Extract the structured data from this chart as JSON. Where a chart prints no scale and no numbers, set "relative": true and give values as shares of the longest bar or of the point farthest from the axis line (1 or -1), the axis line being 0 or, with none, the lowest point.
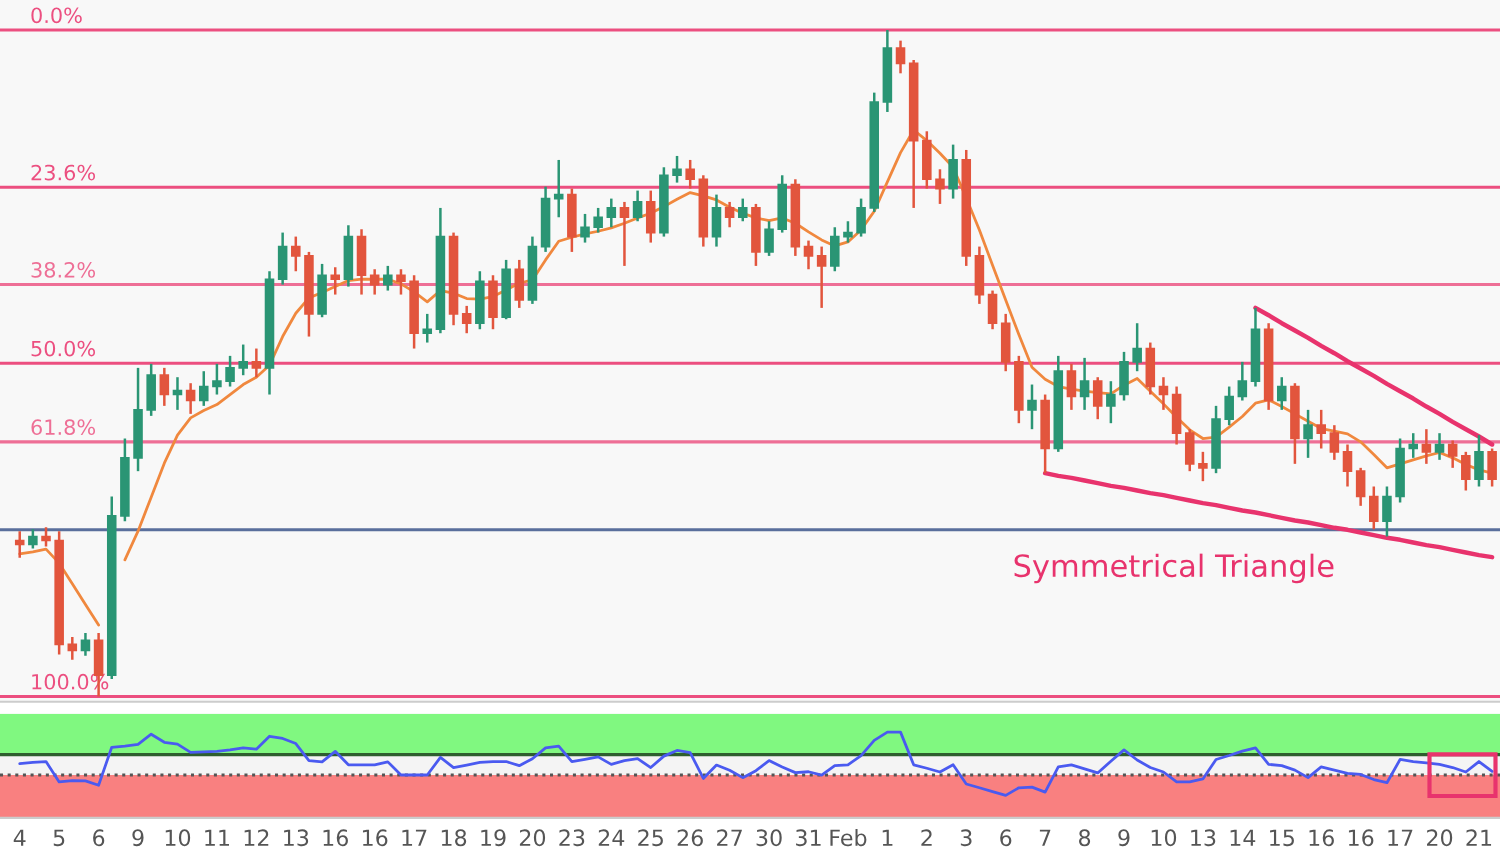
{
  "chart_data": [
    {
      "type": "candlestick",
      "ylim": [
        100.8,
        -4.5
      ],
      "categories": [
        null,
        null,
        null,
        null,
        null,
        null,
        null,
        null,
        null,
        null,
        null,
        null,
        null,
        null,
        null,
        null,
        null,
        null,
        null,
        null,
        null,
        null,
        null,
        null,
        null,
        null,
        null,
        null,
        null,
        null,
        null,
        null,
        null,
        null,
        null,
        null,
        null,
        null,
        null,
        null,
        null,
        null,
        null,
        null,
        null,
        null,
        null,
        null,
        null,
        null,
        null,
        null,
        null,
        null,
        null,
        null,
        null,
        null,
        null,
        null,
        null,
        null,
        null,
        null,
        null,
        null,
        null,
        null,
        null,
        null,
        null,
        null,
        null,
        null,
        null,
        null,
        null,
        null,
        null,
        null,
        null,
        null,
        null,
        null,
        null,
        null,
        null,
        null,
        null,
        null,
        null,
        null,
        null,
        null,
        null,
        null,
        null,
        null,
        null,
        null,
        null,
        null,
        null,
        null,
        null,
        null,
        null,
        null,
        null,
        null,
        null,
        null,
        null
      ],
      "ohlc": [
        [
          76.6,
          79.2,
          75.2,
          77.2
        ],
        [
          77.2,
          77.8,
          74.9,
          76.0
        ],
        [
          76.0,
          77.5,
          74.6,
          76.6
        ],
        [
          76.6,
          93.7,
          75.2,
          92.2
        ],
        [
          92.2,
          94.5,
          91.1,
          93.1
        ],
        [
          93.1,
          93.9,
          90.5,
          91.6
        ],
        [
          91.6,
          100,
          90.5,
          96.8
        ],
        [
          96.8,
          97.4,
          70.0,
          72.9
        ],
        [
          72.9,
          73.7,
          61.3,
          64.2
        ],
        [
          64.2,
          66.2,
          50.7,
          57.0
        ],
        [
          57.0,
          57.9,
          50.1,
          51.8
        ],
        [
          51.8,
          56.4,
          50.7,
          54.7
        ],
        [
          54.7,
          57.0,
          52.1,
          54.1
        ],
        [
          54.1,
          57.6,
          53.0,
          55.6
        ],
        [
          55.6,
          56.4,
          51.2,
          53.5
        ],
        [
          53.5,
          54.7,
          50.1,
          52.7
        ],
        [
          52.7,
          53.5,
          48.9,
          50.7
        ],
        [
          50.7,
          51.8,
          47.2,
          49.8
        ],
        [
          49.8,
          52.1,
          47.8,
          50.7
        ],
        [
          50.7,
          54.7,
          36.2,
          37.4
        ],
        [
          37.4,
          38.2,
          30.4,
          32.5
        ],
        [
          32.5,
          36.2,
          31.0,
          33.9
        ],
        [
          33.9,
          46.0,
          33.3,
          42.6
        ],
        [
          42.6,
          43.1,
          35.1,
          36.8
        ],
        [
          36.8,
          39.7,
          35.6,
          37.4
        ],
        [
          37.4,
          38.5,
          29.3,
          31.0
        ],
        [
          31.0,
          39.7,
          29.9,
          36.8
        ],
        [
          36.8,
          39.7,
          35.9,
          38.2
        ],
        [
          38.2,
          39.1,
          35.4,
          36.8
        ],
        [
          36.8,
          39.7,
          35.9,
          37.7
        ],
        [
          37.7,
          47.8,
          36.8,
          45.5
        ],
        [
          45.5,
          46.9,
          42.6,
          44.9
        ],
        [
          44.9,
          45.5,
          26.7,
          31.0
        ],
        [
          31.0,
          44.3,
          30.4,
          42.6
        ],
        [
          42.6,
          45.5,
          41.4,
          44.0
        ],
        [
          44.0,
          44.9,
          36.2,
          37.7
        ],
        [
          37.7,
          44.9,
          36.8,
          43.1
        ],
        [
          43.1,
          43.4,
          34.5,
          35.9
        ],
        [
          35.9,
          41.7,
          34.5,
          40.5
        ],
        [
          40.5,
          41.1,
          31.0,
          32.5
        ],
        [
          32.5,
          33.3,
          23.5,
          25.3
        ],
        [
          25.3,
          28.1,
          19.5,
          24.7
        ],
        [
          24.7,
          33.3,
          23.8,
          31.0
        ],
        [
          31.0,
          31.9,
          27.6,
          29.6
        ],
        [
          29.6,
          30.4,
          26.7,
          28.1
        ],
        [
          28.1,
          29.6,
          25.3,
          26.7
        ],
        [
          26.7,
          35.4,
          25.8,
          28.1
        ],
        [
          28.1,
          28.7,
          24.1,
          25.8
        ],
        [
          25.8,
          31.9,
          24.1,
          30.4
        ],
        [
          30.4,
          31.0,
          20.6,
          21.8
        ],
        [
          21.8,
          22.9,
          18.9,
          20.9
        ],
        [
          20.9,
          23.8,
          19.5,
          22.4
        ],
        [
          22.4,
          32.5,
          21.8,
          31.0
        ],
        [
          31.0,
          32.5,
          24.7,
          26.7
        ],
        [
          26.7,
          29.6,
          25.8,
          28.1
        ],
        [
          28.1,
          28.7,
          25.3,
          26.7
        ],
        [
          26.7,
          35.4,
          26.1,
          33.3
        ],
        [
          33.3,
          33.9,
          28.7,
          29.9
        ],
        [
          29.9,
          30.4,
          21.8,
          23.2
        ],
        [
          23.2,
          33.9,
          22.4,
          32.5
        ],
        [
          32.5,
          35.9,
          31.6,
          33.9
        ],
        [
          33.9,
          41.7,
          32.5,
          35.4
        ],
        [
          35.4,
          36.2,
          29.6,
          31.0
        ],
        [
          31.0,
          31.9,
          28.7,
          30.4
        ],
        [
          30.4,
          31.0,
          25.3,
          26.7
        ],
        [
          26.7,
          27.3,
          9.4,
          10.8
        ],
        [
          10.8,
          12.3,
          0,
          2.7
        ],
        [
          2.7,
          6.5,
          1.6,
          5.0
        ],
        [
          5.0,
          26.7,
          4.5,
          16.6
        ],
        [
          16.6,
          23.8,
          15.2,
          22.4
        ],
        [
          22.4,
          26.1,
          20.9,
          23.8
        ],
        [
          23.8,
          25.3,
          17.2,
          19.5
        ],
        [
          19.5,
          35.4,
          18.0,
          33.9
        ],
        [
          33.9,
          41.1,
          32.5,
          39.7
        ],
        [
          39.7,
          44.9,
          39.1,
          44.0
        ],
        [
          44.0,
          51.2,
          42.6,
          49.8
        ],
        [
          49.8,
          59.0,
          48.9,
          57.0
        ],
        [
          57.0,
          59.9,
          53.2,
          55.6
        ],
        [
          55.6,
          66.5,
          54.7,
          62.8
        ],
        [
          62.8,
          63.3,
          48.9,
          51.2
        ],
        [
          51.2,
          57.0,
          50.1,
          55.0
        ],
        [
          55.0,
          57.0,
          49.2,
          52.7
        ],
        [
          52.7,
          58.4,
          52.1,
          56.4
        ],
        [
          56.4,
          59.0,
          52.7,
          54.7
        ],
        [
          54.7,
          55.6,
          48.3,
          49.8
        ],
        [
          49.8,
          51.2,
          44.0,
          47.8
        ],
        [
          47.8,
          54.7,
          46.9,
          53.5
        ],
        [
          53.5,
          57.0,
          52.1,
          54.7
        ],
        [
          54.7,
          62.2,
          53.5,
          60.5
        ],
        [
          60.5,
          66.2,
          59.9,
          65.1
        ],
        [
          65.1,
          67.7,
          63.3,
          65.7
        ],
        [
          65.7,
          66.5,
          56.4,
          58.4
        ],
        [
          58.4,
          59.3,
          53.5,
          55.0
        ],
        [
          55.0,
          55.6,
          49.8,
          52.7
        ],
        [
          52.7,
          53.5,
          41.7,
          44.9
        ],
        [
          44.9,
          57.0,
          44.0,
          55.6
        ],
        [
          55.6,
          57.0,
          52.1,
          53.5
        ],
        [
          53.5,
          65.1,
          53.0,
          61.3
        ],
        [
          61.3,
          64.2,
          57.0,
          59.3
        ],
        [
          59.3,
          62.8,
          57.0,
          60.5
        ],
        [
          60.5,
          64.5,
          59.3,
          63.3
        ],
        [
          63.3,
          68.5,
          62.2,
          66.2
        ],
        [
          66.2,
          71.4,
          65.7,
          70.0
        ],
        [
          70.0,
          74.9,
          68.5,
          73.7
        ],
        [
          73.7,
          76.0,
          68.5,
          70.0
        ],
        [
          70.0,
          70.9,
          61.3,
          62.8
        ],
        [
          62.8,
          64.2,
          60.5,
          62.2
        ],
        [
          62.2,
          65.1,
          59.9,
          63.3
        ],
        [
          63.3,
          64.5,
          60.5,
          62.2
        ],
        [
          62.2,
          65.7,
          61.6,
          63.9
        ],
        [
          63.9,
          69.1,
          63.3,
          67.4
        ],
        [
          67.4,
          68.5,
          60.8,
          63.3
        ],
        [
          63.3,
          68.5,
          62.8,
          67.4
        ]
      ],
      "colors": [
        "#e2553d",
        "#2a9574",
        "#e2553d",
        "#e2553d",
        "#e2553d",
        "#2a9574",
        "#e2553d",
        "#2a9574",
        "#2a9574",
        "#2a9574",
        "#2a9574",
        "#e2553d",
        "#2a9574",
        "#e2553d",
        "#2a9574",
        "#2a9574",
        "#2a9574",
        "#2a9574",
        "#e2553d",
        "#2a9574",
        "#2a9574",
        "#e2553d",
        "#e2553d",
        "#2a9574",
        "#e2553d",
        "#2a9574",
        "#e2553d",
        "#e2553d",
        "#2a9574",
        "#e2553d",
        "#e2553d",
        "#2a9574",
        "#2a9574",
        "#e2553d",
        "#e2553d",
        "#2a9574",
        "#e2553d",
        "#2a9574",
        "#e2553d",
        "#2a9574",
        "#2a9574",
        "#2a9574",
        "#e2553d",
        "#2a9574",
        "#2a9574",
        "#2a9574",
        "#e2553d",
        "#2a9574",
        "#e2553d",
        "#2a9574",
        "#2a9574",
        "#e2553d",
        "#e2553d",
        "#2a9574",
        "#e2553d",
        "#2a9574",
        "#e2553d",
        "#2a9574",
        "#2a9574",
        "#e2553d",
        "#e2553d",
        "#e2553d",
        "#2a9574",
        "#2a9574",
        "#2a9574",
        "#2a9574",
        "#2a9574",
        "#e2553d",
        "#e2553d",
        "#e2553d",
        "#e2553d",
        "#2a9574",
        "#e2553d",
        "#e2553d",
        "#e2553d",
        "#e2553d",
        "#e2553d",
        "#2a9574",
        "#e2553d",
        "#2a9574",
        "#e2553d",
        "#2a9574",
        "#e2553d",
        "#2a9574",
        "#2a9574",
        "#2a9574",
        "#e2553d",
        "#e2553d",
        "#e2553d",
        "#e2553d",
        "#e2553d",
        "#2a9574",
        "#2a9574",
        "#2a9574",
        "#2a9574",
        "#e2553d",
        "#2a9574",
        "#e2553d",
        "#2a9574",
        "#e2553d",
        "#e2553d",
        "#e2553d",
        "#e2553d",
        "#e2553d",
        "#2a9574",
        "#2a9574",
        "#2a9574",
        "#e2553d",
        "#2a9574",
        "#e2553d",
        "#e2553d",
        "#2a9574",
        "#e2553d"
      ],
      "series": [
        {
          "type": "line",
          "color": "#f0883e",
          "values": [
            78.6,
            78.3,
            77.9,
            80.0,
            83.1,
            86.2,
            89.3,
            null,
            79.5,
            75.2,
            70.1,
            65.0,
            60.8,
            58.2,
            57.1,
            56.2,
            54.7,
            53.2,
            52.1,
            50.3,
            46.0,
            42.5,
            40.2,
            39.4,
            38.5,
            37.6,
            37.4,
            37.4,
            37.4,
            38.1,
            39.3,
            40.8,
            39.1,
            39.5,
            40.3,
            40.4,
            40.0,
            39.0,
            38.0,
            37.5,
            34.5,
            31.7,
            31.1,
            30.6,
            30.2,
            29.7,
            29.0,
            28.2,
            27.5,
            26.5,
            25.4,
            24.4,
            24.9,
            25.5,
            26.6,
            27.5,
            28.2,
            28.6,
            28.2,
            29.0,
            30.3,
            31.5,
            32.4,
            31.8,
            30.0,
            27.2,
            22.8,
            18.4,
            15.0,
            16.6,
            18.5,
            20.6,
            25.2,
            30.0,
            35.3,
            40.5,
            45.7,
            50.6,
            52.4,
            53.5,
            53.9,
            54.2,
            54.4,
            54.6,
            53.3,
            52.3,
            54.2,
            56.1,
            58.1,
            60.0,
            61.3,
            61.1,
            59.6,
            58.0,
            56.0,
            55.5,
            56.5,
            57.6,
            58.7,
            59.8,
            60.2,
            60.6,
            61.8,
            63.7,
            65.7,
            65.1,
            64.5,
            63.9,
            63.4,
            64.2,
            65.2,
            66.0,
            66.5
          ]
        },
        {
          "type": "line",
          "color": "#e8336d",
          "values": [
            null,
            null,
            null,
            null,
            null,
            null,
            null,
            null,
            null,
            null,
            null,
            null,
            null,
            null,
            null,
            null,
            null,
            null,
            null,
            null,
            null,
            null,
            null,
            null,
            null,
            null,
            null,
            null,
            null,
            null,
            null,
            null,
            null,
            null,
            null,
            null,
            null,
            null,
            null,
            null,
            null,
            null,
            null,
            null,
            null,
            null,
            null,
            null,
            null,
            null,
            null,
            null,
            null,
            null,
            null,
            null,
            null,
            null,
            null,
            null,
            null,
            null,
            null,
            null,
            null,
            null,
            null,
            null,
            null,
            null,
            null,
            null,
            null,
            null,
            null,
            null,
            null,
            null,
            66.5,
            66.9,
            67.2,
            67.6,
            68.0,
            68.4,
            68.7,
            69.1,
            69.5,
            69.8,
            70.2,
            70.6,
            71.0,
            71.3,
            71.7,
            72.1,
            72.4,
            72.8,
            73.2,
            73.6,
            73.9,
            74.3,
            74.7,
            75.0,
            75.4,
            75.8,
            76.2,
            76.5,
            76.9,
            77.3,
            77.6,
            78.0,
            78.4,
            78.8,
            79.1
          ]
        },
        {
          "type": "line",
          "color": "#e8336d",
          "values": [
            null,
            null,
            null,
            null,
            null,
            null,
            null,
            null,
            null,
            null,
            null,
            null,
            null,
            null,
            null,
            null,
            null,
            null,
            null,
            null,
            null,
            null,
            null,
            null,
            null,
            null,
            null,
            null,
            null,
            null,
            null,
            null,
            null,
            null,
            null,
            null,
            null,
            null,
            null,
            null,
            null,
            null,
            null,
            null,
            null,
            null,
            null,
            null,
            null,
            null,
            null,
            null,
            null,
            null,
            null,
            null,
            null,
            null,
            null,
            null,
            null,
            null,
            null,
            null,
            null,
            null,
            null,
            null,
            null,
            null,
            null,
            null,
            null,
            null,
            null,
            null,
            null,
            null,
            null,
            null,
            null,
            null,
            null,
            null,
            null,
            null,
            null,
            null,
            null,
            null,
            null,
            null,
            null,
            null,
            41.7,
            42.8,
            44.0,
            45.1,
            46.2,
            47.4,
            48.5,
            49.7,
            50.8,
            51.9,
            53.1,
            54.2,
            55.3,
            56.5,
            57.6,
            58.8,
            59.9,
            61.0,
            62.2
          ]
        }
      ],
      "ref_lines": [
        {
          "axis": "y",
          "value": 0,
          "label": "0.0%",
          "color": "#ec4f80"
        },
        {
          "axis": "y",
          "value": 23.6,
          "label": "23.6%",
          "color": "#ec4f80"
        },
        {
          "axis": "y",
          "value": 38.2,
          "label": "38.2%",
          "color": "#ee6f96"
        },
        {
          "axis": "y",
          "value": 50.0,
          "label": "50.0%",
          "color": "#ec4f80"
        },
        {
          "axis": "y",
          "value": 61.8,
          "label": "61.8%",
          "color": "#ee6f96"
        },
        {
          "axis": "y",
          "value": 100,
          "label": "100.0%",
          "color": "#ec4f80"
        },
        {
          "axis": "y",
          "value": 75,
          "color": "#5a6f9c"
        }
      ],
      "annotations": [
        "Symmetrical Triangle"
      ]
    },
    {
      "type": "line",
      "relative": true,
      "tick_labels": "x",
      "categories": [
        "4",
        null,
        null,
        "5",
        null,
        null,
        "6",
        null,
        null,
        "9",
        null,
        null,
        "10",
        null,
        null,
        "11",
        null,
        null,
        "12",
        null,
        null,
        "13",
        null,
        null,
        "16",
        null,
        null,
        "16",
        null,
        null,
        "17",
        null,
        null,
        "18",
        null,
        null,
        "19",
        null,
        null,
        "20",
        null,
        null,
        "23",
        null,
        null,
        "24",
        null,
        null,
        "25",
        null,
        null,
        "26",
        null,
        null,
        "27",
        null,
        null,
        "30",
        null,
        null,
        "31",
        null,
        null,
        "Feb",
        null,
        null,
        "1",
        null,
        null,
        "2",
        null,
        null,
        "3",
        null,
        null,
        "6",
        null,
        null,
        "7",
        null,
        null,
        "8",
        null,
        null,
        "9",
        null,
        null,
        "10",
        null,
        null,
        "13",
        null,
        null,
        "14",
        null,
        null,
        "15",
        null,
        null,
        "16",
        null,
        null,
        "16",
        null,
        null,
        "17",
        null,
        null,
        "20",
        null,
        null,
        "21",
        null
      ],
      "series": [
        {
          "color": "#4a5af0",
          "values": [
            0.633,
            0.646,
            0.657,
            0.419,
            0.435,
            0.431,
            0.381,
            0.823,
            0.838,
            0.857,
            0.976,
            0.882,
            0.86,
            0.764,
            0.771,
            0.776,
            0.793,
            0.817,
            0.801,
            0.952,
            0.926,
            0.867,
            0.668,
            0.653,
            0.776,
            0.619,
            0.619,
            0.619,
            0.653,
            0.5,
            0.5,
            0.5,
            0.705,
            0.587,
            0.616,
            0.646,
            0.657,
            0.657,
            0.609,
            0.69,
            0.817,
            0.838,
            0.657,
            0.683,
            0.712,
            0.624,
            0.668,
            0.69,
            0.587,
            0.72,
            0.786,
            0.762,
            0.46,
            0.616,
            0.555,
            0.469,
            0.55,
            0.668,
            0.594,
            0.528,
            0.538,
            0.498,
            0.609,
            0.619,
            0.727,
            0.904,
            1,
            1,
            0.619,
            0.579,
            0.535,
            0.619,
            0.395,
            0.351,
            0.306,
            0.262,
            0.351,
            0.358,
            0.3,
            0.594,
            0.619,
            0.572,
            0.524,
            0.661,
            0.793,
            0.675,
            0.587,
            0.535,
            0.419,
            0.419,
            0.454,
            0.681,
            0.727,
            0.779,
            0.817,
            0.624,
            0.609,
            0.557,
            0.469,
            0.594,
            0.557,
            0.52,
            0.506,
            0.447,
            0.41,
            0.681,
            0.657,
            0.642,
            0.624,
            0.587,
            0.535,
            0.657,
            0.542
          ]
        }
      ],
      "bands": [
        {
          "axis": "y",
          "from": 0.738,
          "to": 1.214,
          "color": "#80f880"
        },
        {
          "axis": "y",
          "from": 0,
          "to": 0.5,
          "color": "#f98080"
        }
      ],
      "ref_lines": [
        {
          "axis": "y",
          "value": 0.738,
          "color": "#2e5e2e",
          "line_style": "solid"
        },
        {
          "axis": "y",
          "value": 0.5,
          "color": "#555555",
          "line_style": "dotted"
        }
      ]
    }
  ]
}
